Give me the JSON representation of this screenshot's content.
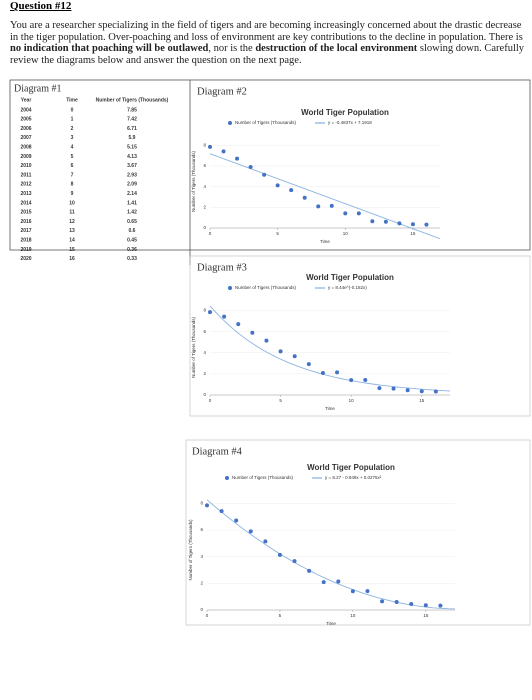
{
  "question": "Question #12",
  "intro": [
    {
      "text": "You are a researcher specializing in the field of tigers and are becoming increasingly concerned about the drastic decrease in the tiger population. Over-poaching and loss of environment are key contributions to the decline in population. There is ",
      "bold": false
    },
    {
      "text": "no indication that poaching will be outlawed",
      "bold": true
    },
    {
      "text": ", nor is the ",
      "bold": false
    },
    {
      "text": "destruction of the local environment",
      "bold": true
    },
    {
      "text": " slowing down. Carefully review the diagrams below and answer the question on the next page.",
      "bold": false
    }
  ],
  "table": {
    "label": "Diagram #1",
    "header": [
      "Year",
      "Time",
      "Number of Tigers (Thousands)"
    ],
    "rows": [
      [
        2004,
        0,
        7.85
      ],
      [
        2005,
        1,
        7.42
      ],
      [
        2006,
        2,
        6.71
      ],
      [
        2007,
        3,
        5.9
      ],
      [
        2008,
        4,
        5.15
      ],
      [
        2009,
        5,
        4.13
      ],
      [
        2010,
        6,
        3.67
      ],
      [
        2011,
        7,
        2.93
      ],
      [
        2012,
        8,
        2.09
      ],
      [
        2013,
        9,
        2.14
      ],
      [
        2014,
        10,
        1.41
      ],
      [
        2015,
        11,
        1.42
      ],
      [
        2016,
        12,
        0.65
      ],
      [
        2017,
        13,
        0.6
      ],
      [
        2018,
        14,
        0.45
      ],
      [
        2019,
        15,
        0.36
      ],
      [
        2020,
        16,
        0.33
      ]
    ]
  },
  "diagrams": [
    {
      "label": "Diagram #2",
      "chart": {
        "type": "scatter",
        "title": "World Tiger Population",
        "series_name": "Number of Tigers (Thousands)",
        "x_label": "Time",
        "y_label": "Number of Tigers (Thousands)",
        "color": "#4472c4",
        "xlim": [
          0,
          17
        ],
        "ylim": [
          0,
          9
        ],
        "xticks": [
          0,
          5,
          10,
          15
        ],
        "yticks": [
          0,
          2,
          4,
          6,
          8
        ],
        "trendline": {
          "kind": "linear",
          "label": "y = -0.4837x + 7.1918",
          "coefficients": [
            7.1918,
            -0.4837
          ]
        }
      }
    },
    {
      "label": "Diagram #3",
      "chart": {
        "type": "scatter",
        "title": "World Tiger Population",
        "series_name": "Number of Tigers (Thousands)",
        "x_label": "Time",
        "y_label": "Number of Tigers (Thousands)",
        "color": "#4472c4",
        "xlim": [
          0,
          17
        ],
        "ylim": [
          0,
          9
        ],
        "xticks": [
          0,
          5,
          10,
          15
        ],
        "yticks": [
          0,
          2,
          4,
          6,
          8
        ],
        "trendline": {
          "kind": "exponential",
          "label": "y = 8.44e^(-0.182x)",
          "coefficients": [
            8.44,
            -0.182
          ]
        }
      }
    },
    {
      "label": "Diagram #4",
      "chart": {
        "type": "scatter",
        "title": "World Tiger Population",
        "series_name": "Number of Tigers (Thousands)",
        "x_label": "Time",
        "y_label": "Number of Tigers (Thousands)",
        "color": "#4472c4",
        "xlim": [
          0,
          17
        ],
        "ylim": [
          0,
          9
        ],
        "xticks": [
          0,
          5,
          10,
          15
        ],
        "yticks": [
          0,
          2,
          4,
          6,
          8
        ],
        "trendline": {
          "kind": "polynomial",
          "label": "y = 8.27 - 0.949x + 0.0275x²",
          "coefficients": [
            8.27,
            -0.949,
            0.0275
          ]
        }
      }
    }
  ]
}
